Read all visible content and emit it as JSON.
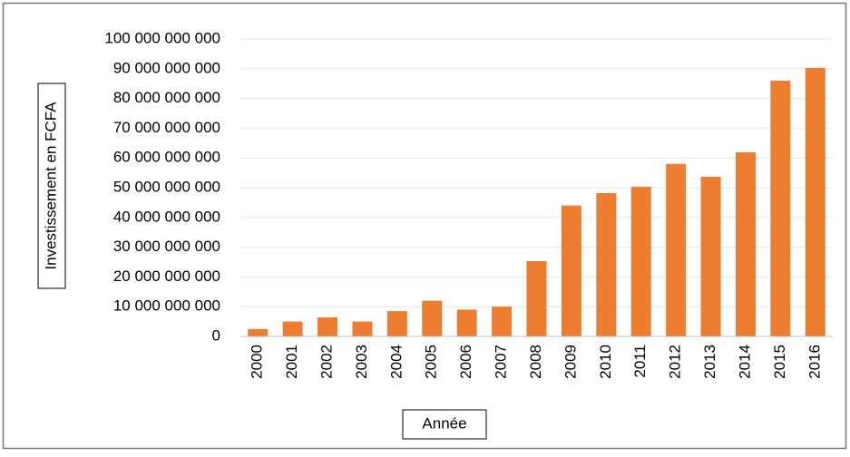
{
  "chart_data": {
    "type": "bar",
    "x_label": "Année",
    "y_label": "Investissement en FCFA",
    "categories": [
      "2000",
      "2001",
      "2002",
      "2003",
      "2004",
      "2005",
      "2006",
      "2007",
      "2008",
      "2009",
      "2010",
      "2011",
      "2012",
      "2013",
      "2014",
      "2015",
      "2016"
    ],
    "values": [
      2500000000,
      5000000000,
      6400000000,
      5000000000,
      8500000000,
      12000000000,
      9000000000,
      10000000000,
      25300000000,
      44000000000,
      48200000000,
      50300000000,
      58000000000,
      53700000000,
      61900000000,
      86000000000,
      90300000000
    ],
    "color": "#ed7d31",
    "ylim": [
      0,
      100000000000
    ],
    "yticks": [
      0,
      {
        "value": 10000000000,
        "label": "10 000 000 000"
      },
      {
        "value": 20000000000,
        "label": "20 000 000 000"
      },
      {
        "value": 30000000000,
        "label": "30 000 000 000"
      },
      {
        "value": 40000000000,
        "label": "40 000 000 000"
      },
      {
        "value": 50000000000,
        "label": "50 000 000 000"
      },
      {
        "value": 60000000000,
        "label": "60 000 000 000"
      },
      {
        "value": 70000000000,
        "label": "70 000 000 000"
      },
      {
        "value": 80000000000,
        "label": "80 000 000 000"
      },
      {
        "value": 90000000000,
        "label": "90 000 000 000"
      },
      {
        "value": 100000000000,
        "label": "100 000 000 000"
      }
    ],
    "grid": true
  }
}
